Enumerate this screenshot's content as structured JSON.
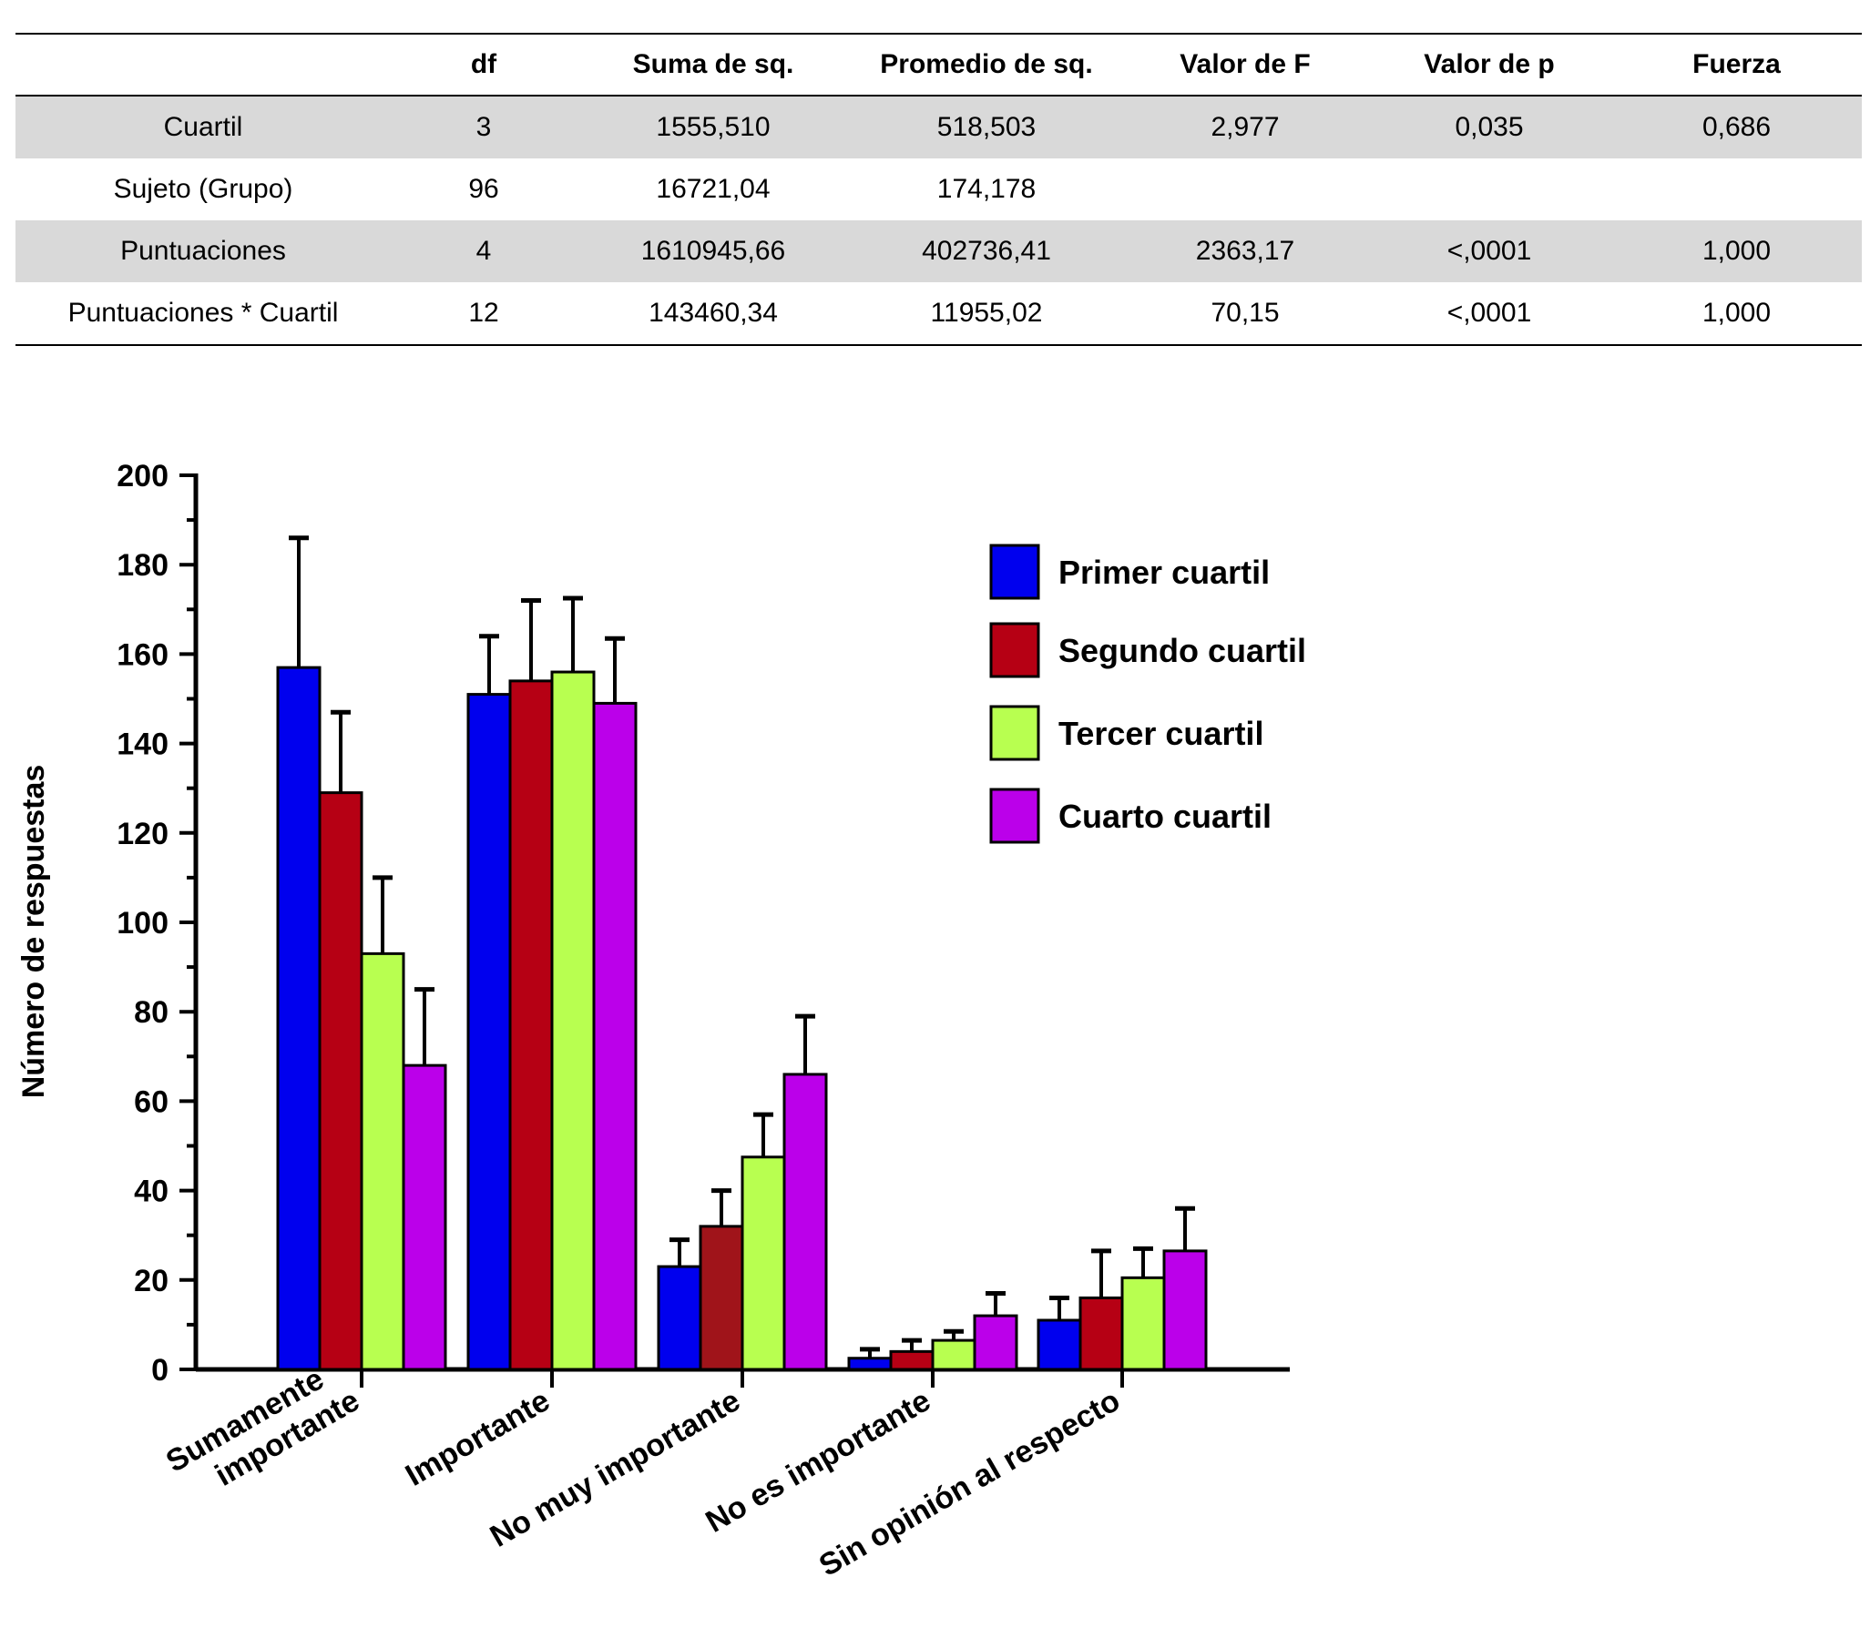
{
  "table": {
    "headers": [
      "",
      "df",
      "Suma de sq.",
      "Promedio de sq.",
      "Valor de F",
      "Valor de p",
      "Fuerza"
    ],
    "rows": [
      [
        "Cuartil",
        "3",
        "1555,510",
        "518,503",
        "2,977",
        "0,035",
        "0,686"
      ],
      [
        "Sujeto (Grupo)",
        "96",
        "16721,04",
        "174,178",
        "",
        "",
        ""
      ],
      [
        "Puntuaciones",
        "4",
        "1610945,66",
        "402736,41",
        "2363,17",
        "<,0001",
        "1,000"
      ],
      [
        "Puntuaciones * Cuartil",
        "12",
        "143460,34",
        "11955,02",
        "70,15",
        "<,0001",
        "1,000"
      ]
    ]
  },
  "chart_data": {
    "type": "bar",
    "ylabel": "Número de respuestas",
    "xlabel": "",
    "ylim": [
      0,
      200
    ],
    "yticks": [
      "0",
      "20",
      "40",
      "60",
      "80",
      "100",
      "120",
      "140",
      "160",
      "180",
      "200"
    ],
    "categories": [
      [
        "Sumamente",
        "importante"
      ],
      [
        "Importante"
      ],
      [
        "No muy importante"
      ],
      [
        "No es importante"
      ],
      [
        "Sin opinión al respecto"
      ]
    ],
    "legend_position": "top-right",
    "grid": false,
    "series": [
      {
        "name": "Primer cuartil",
        "color": "#0000ee",
        "values": [
          157,
          151,
          23,
          2.5,
          11
        ],
        "error_upper": [
          186,
          164,
          29,
          4.5,
          16
        ]
      },
      {
        "name": "Segundo cuartil",
        "color": "#b60014",
        "values": [
          129,
          154,
          32,
          4,
          16
        ],
        "error_upper": [
          147,
          172,
          40,
          6.5,
          26.5
        ]
      },
      {
        "name": "Tercer cuartil",
        "color": "#b8ff50",
        "values": [
          93,
          156,
          47.5,
          6.5,
          20.5
        ],
        "error_upper": [
          110,
          172.5,
          57,
          8.5,
          27
        ]
      },
      {
        "name": "Cuarto cuartil",
        "color": "#bb00ea",
        "values": [
          68,
          149,
          66,
          12,
          26.5
        ],
        "error_upper": [
          85,
          163.5,
          79,
          17,
          36
        ]
      }
    ]
  }
}
